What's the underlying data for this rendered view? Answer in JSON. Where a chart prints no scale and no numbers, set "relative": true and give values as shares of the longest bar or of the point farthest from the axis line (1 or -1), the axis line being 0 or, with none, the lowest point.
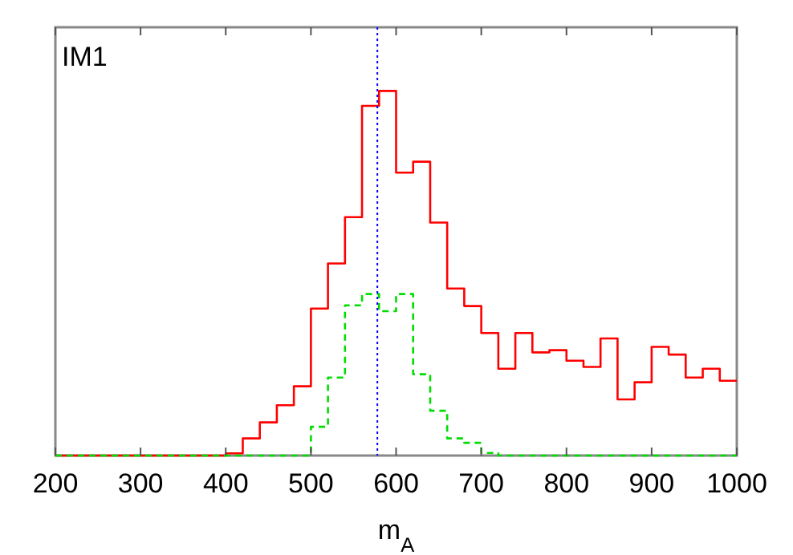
{
  "chart_data": {
    "type": "step",
    "xlabel": "m$_{A}$",
    "relative": true,
    "annotations": [
      "IM1"
    ],
    "x": [
      200,
      220,
      240,
      260,
      280,
      300,
      320,
      340,
      360,
      380,
      400,
      420,
      440,
      460,
      480,
      500,
      520,
      540,
      560,
      580,
      600,
      620,
      640,
      660,
      680,
      700,
      720,
      740,
      760,
      780,
      800,
      820,
      840,
      860,
      880,
      900,
      920,
      940,
      960,
      980,
      1000
    ],
    "series": [
      {
        "color": "#ff0000",
        "line_style": "solid",
        "values": [
          0,
          0,
          0,
          0,
          0,
          0,
          0,
          0,
          0,
          0,
          0.006,
          0.047,
          0.091,
          0.138,
          0.19,
          0.403,
          0.527,
          0.654,
          0.959,
          1,
          0.776,
          0.806,
          0.639,
          0.458,
          0.41,
          0.336,
          0.238,
          0.336,
          0.283,
          0.289,
          0.26,
          0.243,
          0.321,
          0.154,
          0.201,
          0.298,
          0.277,
          0.214,
          0.238,
          0.205,
          0.205
        ]
      },
      {
        "color": "#00dd00",
        "line_style": "dashed",
        "values": [
          0,
          0,
          0,
          0,
          0,
          0,
          0,
          0,
          0,
          0,
          0,
          0,
          0,
          0,
          0,
          0.079,
          0.214,
          0.412,
          0.443,
          0.396,
          0.443,
          0.223,
          0.123,
          0.047,
          0.035,
          0.007,
          0,
          0,
          0,
          0,
          0,
          0,
          0,
          0,
          0,
          0,
          0,
          0,
          0,
          0,
          0
        ]
      }
    ],
    "xlim": [
      200,
      1000
    ],
    "xticks": [
      200,
      300,
      400,
      500,
      600,
      700,
      800,
      900,
      1000
    ],
    "ref_lines": [
      {
        "axis": "x",
        "value": 578,
        "color": "#0000ff",
        "line_style": "dotted"
      }
    ]
  }
}
